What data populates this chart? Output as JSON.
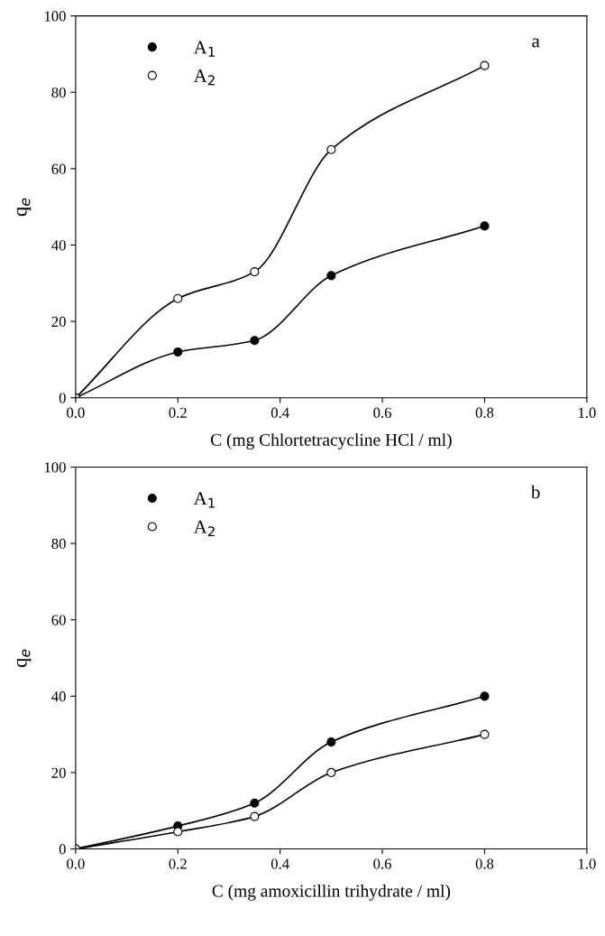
{
  "chart_data": [
    {
      "type": "line",
      "xlabel": "C (mg Chlortetracycline HCl / ml)",
      "ylabel": "q$_{e}$",
      "annotations": [
        "a"
      ],
      "x": [
        0,
        0.2,
        0.35,
        0.5,
        0.8
      ],
      "series": [
        {
          "name": "A$_{1}$",
          "color": "#000000",
          "values": [
            0,
            12,
            15,
            32,
            45
          ]
        },
        {
          "name": "A$_{2}$",
          "color": "#000000",
          "values": [
            0,
            26,
            33,
            65,
            87
          ]
        }
      ],
      "xlim": [
        0,
        1
      ],
      "ylim": [
        0,
        100
      ],
      "xticks": [
        {
          "value": 0,
          "label": "0.0"
        },
        {
          "value": 0.2,
          "label": "0.2"
        },
        {
          "value": 0.4,
          "label": "0.4"
        },
        {
          "value": 0.6,
          "label": "0.6"
        },
        {
          "value": 0.8,
          "label": "0.8"
        },
        {
          "value": 1,
          "label": "1.0"
        }
      ],
      "yticks": [
        0,
        20,
        40,
        60,
        80,
        100
      ],
      "grid": false,
      "legend": "top left",
      "marker": "circle",
      "line_style": "solid"
    },
    {
      "type": "line",
      "xlabel": "C (mg amoxicillin trihydrate / ml)",
      "ylabel": "q$_{e}$",
      "annotations": [
        "b"
      ],
      "x": [
        0,
        0.2,
        0.35,
        0.5,
        0.8
      ],
      "series": [
        {
          "name": "A$_{1}$",
          "color": "#000000",
          "values": [
            0,
            6,
            12,
            28,
            40
          ]
        },
        {
          "name": "A$_{2}$",
          "color": "#000000",
          "values": [
            0,
            4.5,
            8.5,
            20,
            30
          ]
        }
      ],
      "xlim": [
        0,
        1
      ],
      "ylim": [
        0,
        100
      ],
      "xticks": [
        {
          "value": 0,
          "label": "0.0"
        },
        {
          "value": 0.2,
          "label": "0.2"
        },
        {
          "value": 0.4,
          "label": "0.4"
        },
        {
          "value": 0.6,
          "label": "0.6"
        },
        {
          "value": 0.8,
          "label": "0.8"
        },
        {
          "value": 1,
          "label": "1.0"
        }
      ],
      "yticks": [
        0,
        20,
        40,
        60,
        80,
        100
      ],
      "grid": false,
      "legend": "top left",
      "marker": "circle",
      "line_style": "solid"
    }
  ]
}
